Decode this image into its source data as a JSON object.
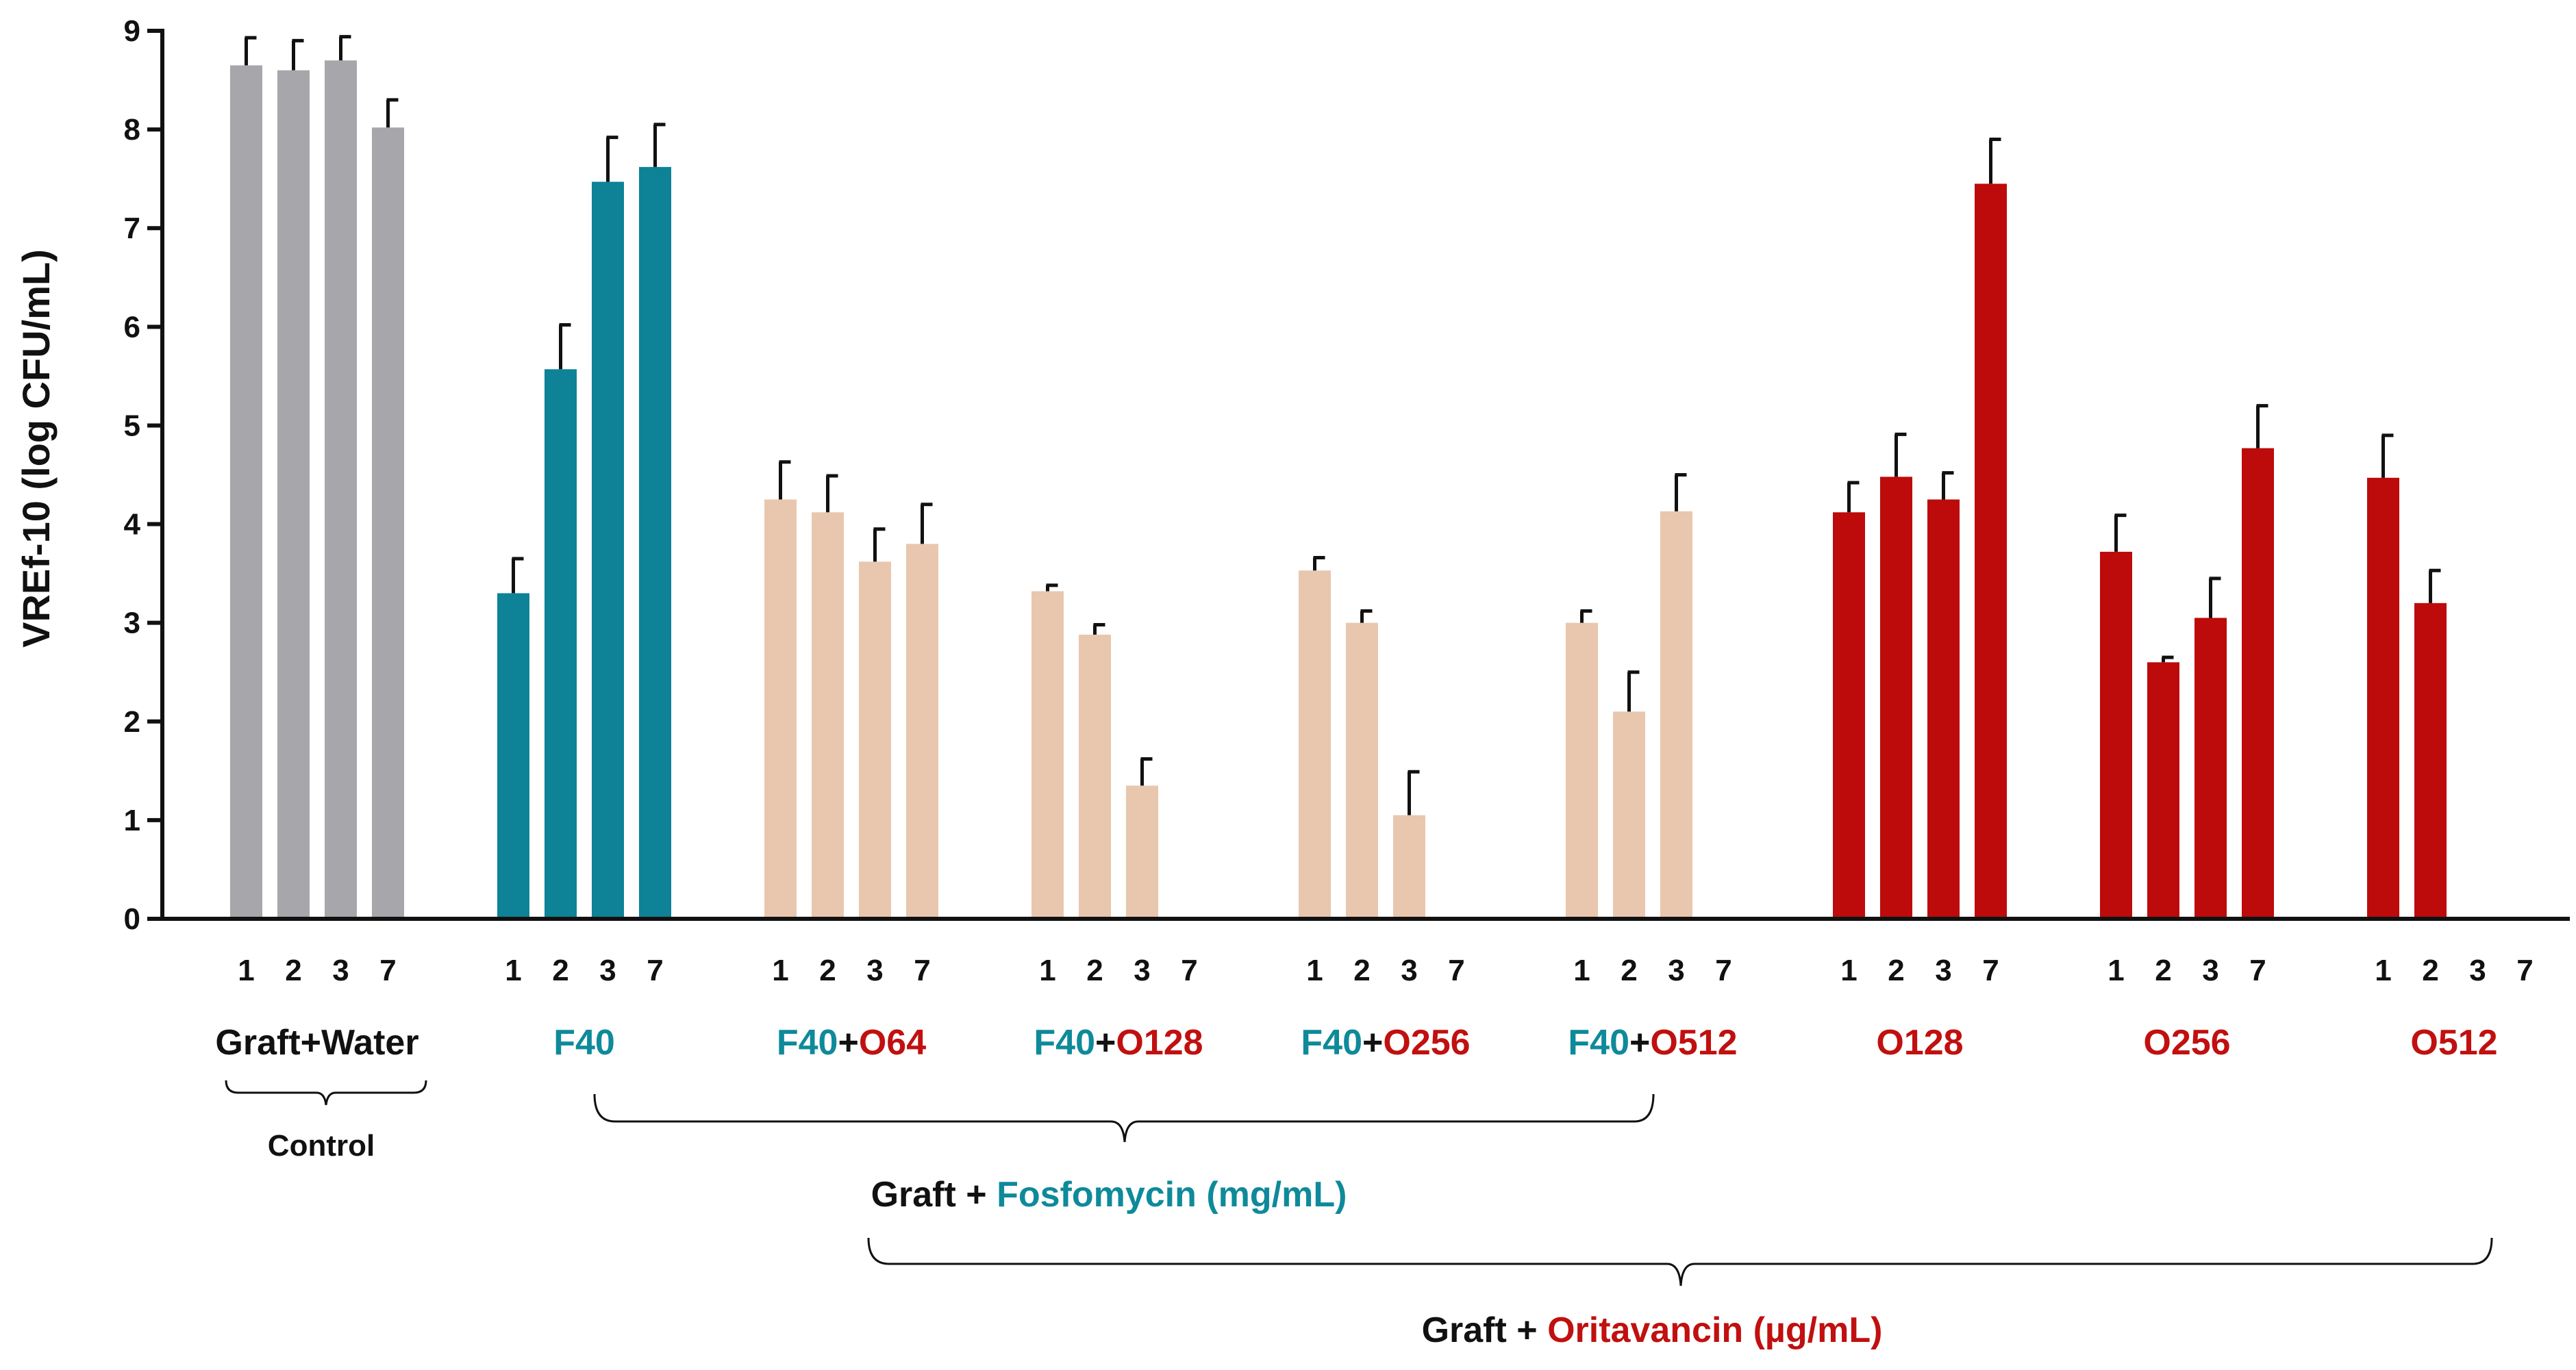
{
  "chart_data": {
    "type": "bar",
    "ylabel": "VREf-10 (log CFU/mL)",
    "ylim": [
      0,
      9
    ],
    "yticks": [
      "0",
      "1",
      "2",
      "3",
      "4",
      "5",
      "6",
      "7",
      "8",
      "9"
    ],
    "day_labels": [
      "1",
      "2",
      "3",
      "7"
    ],
    "colors": {
      "control": "#a7a7ab",
      "fosfomycin": "#0e8296",
      "combination": "#e8c7ae",
      "oritavancin": "#bd0a0a",
      "fosfomycin_text": "#0e8a9a",
      "oritavancin_text": "#c0100f",
      "black_text": "#111111"
    },
    "groups": [
      {
        "id": "graft-water",
        "label_parts": [
          {
            "text": "Graft+Water",
            "color": "black"
          }
        ],
        "color": "control",
        "values": [
          8.65,
          8.6,
          8.7,
          8.02
        ],
        "errors": [
          0.28,
          0.3,
          0.24,
          0.28
        ]
      },
      {
        "id": "f40",
        "label_parts": [
          {
            "text": "F40",
            "color": "fosfomycin"
          }
        ],
        "color": "fosfomycin",
        "values": [
          3.3,
          5.57,
          7.47,
          7.62
        ],
        "errors": [
          0.35,
          0.45,
          0.45,
          0.43
        ]
      },
      {
        "id": "f40-o64",
        "label_parts": [
          {
            "text": "F40",
            "color": "fosfomycin"
          },
          {
            "text": "+",
            "color": "black"
          },
          {
            "text": "O64",
            "color": "oritavancin"
          }
        ],
        "color": "combination",
        "values": [
          4.25,
          4.12,
          3.62,
          3.8
        ],
        "errors": [
          0.38,
          0.37,
          0.33,
          0.4
        ]
      },
      {
        "id": "f40-o128",
        "label_parts": [
          {
            "text": "F40",
            "color": "fosfomycin"
          },
          {
            "text": "+",
            "color": "black"
          },
          {
            "text": "O128",
            "color": "oritavancin"
          }
        ],
        "color": "combination",
        "values": [
          3.32,
          2.88,
          1.35,
          0
        ],
        "errors": [
          0.06,
          0.1,
          0.27,
          0
        ]
      },
      {
        "id": "f40-o256",
        "label_parts": [
          {
            "text": "F40",
            "color": "fosfomycin"
          },
          {
            "text": "+",
            "color": "black"
          },
          {
            "text": "O256",
            "color": "oritavancin"
          }
        ],
        "color": "combination",
        "values": [
          3.53,
          3.0,
          1.05,
          0
        ],
        "errors": [
          0.13,
          0.12,
          0.44,
          0
        ]
      },
      {
        "id": "f40-o512",
        "label_parts": [
          {
            "text": "F40",
            "color": "fosfomycin"
          },
          {
            "text": "+",
            "color": "black"
          },
          {
            "text": "O512",
            "color": "oritavancin"
          }
        ],
        "color": "combination",
        "values": [
          3.0,
          2.1,
          4.13,
          0
        ],
        "errors": [
          0.12,
          0.4,
          0.37,
          0
        ]
      },
      {
        "id": "o128",
        "label_parts": [
          {
            "text": "O128",
            "color": "oritavancin"
          }
        ],
        "color": "oritavancin",
        "values": [
          4.12,
          4.48,
          4.25,
          7.45
        ],
        "errors": [
          0.3,
          0.43,
          0.27,
          0.45
        ]
      },
      {
        "id": "o256",
        "label_parts": [
          {
            "text": "O256",
            "color": "oritavancin"
          }
        ],
        "color": "oritavancin",
        "values": [
          3.72,
          2.6,
          3.05,
          4.77
        ],
        "errors": [
          0.37,
          0.05,
          0.4,
          0.43
        ]
      },
      {
        "id": "o512",
        "label_parts": [
          {
            "text": "O512",
            "color": "oritavancin"
          }
        ],
        "color": "oritavancin",
        "values": [
          4.47,
          3.2,
          0,
          0
        ],
        "errors": [
          0.43,
          0.33,
          0,
          0
        ]
      }
    ],
    "annotations": {
      "control": "Control",
      "fosfomycin_prefix": "Graft + ",
      "fosfomycin_label": "Fosfomycin (mg/mL)",
      "oritavancin_prefix": "Graft + ",
      "oritavancin_label": "Oritavancin (µg/mL)"
    }
  }
}
